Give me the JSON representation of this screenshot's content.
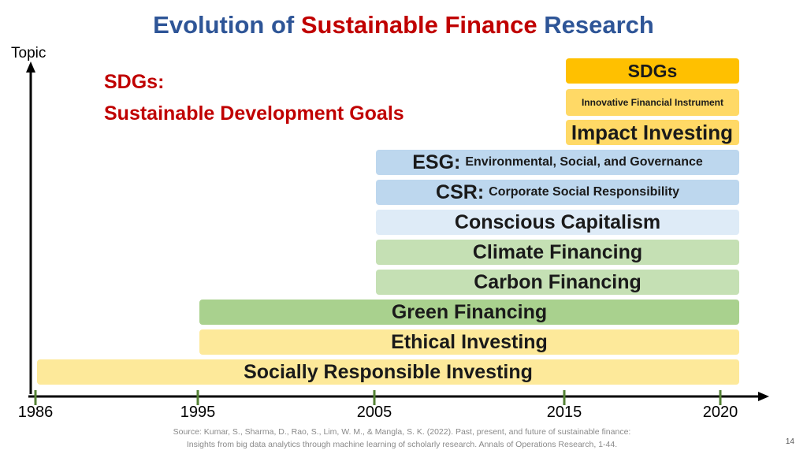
{
  "title": {
    "part1": "Evolution of ",
    "accent": "Sustainable Finance",
    "part2": " Research"
  },
  "axis": {
    "y_label": "Topic"
  },
  "definition": {
    "line1": "SDGs:",
    "line2": "Sustainable Development Goals"
  },
  "years": [
    "1986",
    "1995",
    "2005",
    "2015",
    "2020"
  ],
  "bars": [
    {
      "name": "Socially Responsible Investing",
      "sub": "",
      "start": "1986",
      "color": "#fde99a"
    },
    {
      "name": "Ethical Investing",
      "sub": "",
      "start": "1995",
      "color": "#fde99a"
    },
    {
      "name": "Green Financing",
      "sub": "",
      "start": "1995",
      "color": "#a9d18e"
    },
    {
      "name": "Carbon Financing",
      "sub": "",
      "start": "2005",
      "color": "#c5e0b4"
    },
    {
      "name": "Climate Financing",
      "sub": "",
      "start": "2005",
      "color": "#c5e0b4"
    },
    {
      "name": "Conscious Capitalism",
      "sub": "",
      "start": "2005",
      "color": "#deebf7"
    },
    {
      "name": "CSR:",
      "sub": "Corporate Social Responsibility",
      "start": "2005",
      "color": "#bdd7ee"
    },
    {
      "name": "ESG:",
      "sub": "Environmental, Social, and Governance",
      "start": "2005",
      "color": "#bdd7ee"
    },
    {
      "name": "Impact Investing",
      "sub": "",
      "start": "2015",
      "color": "#ffd966"
    },
    {
      "name": "Innovative Financial Instrument",
      "sub": "",
      "start": "2015",
      "color": "#ffd966"
    },
    {
      "name": "SDGs",
      "sub": "",
      "start": "2015",
      "color": "#ffc000"
    }
  ],
  "source": {
    "line1": "Source: Kumar, S., Sharma, D., Rao, S., Lim, W. M., & Mangla, S. K. (2022). Past, present, and future of sustainable finance:",
    "line2": "Insights from big data analytics through machine learning of scholarly research. Annals of Operations Research, 1-44."
  },
  "page_number": "14"
}
